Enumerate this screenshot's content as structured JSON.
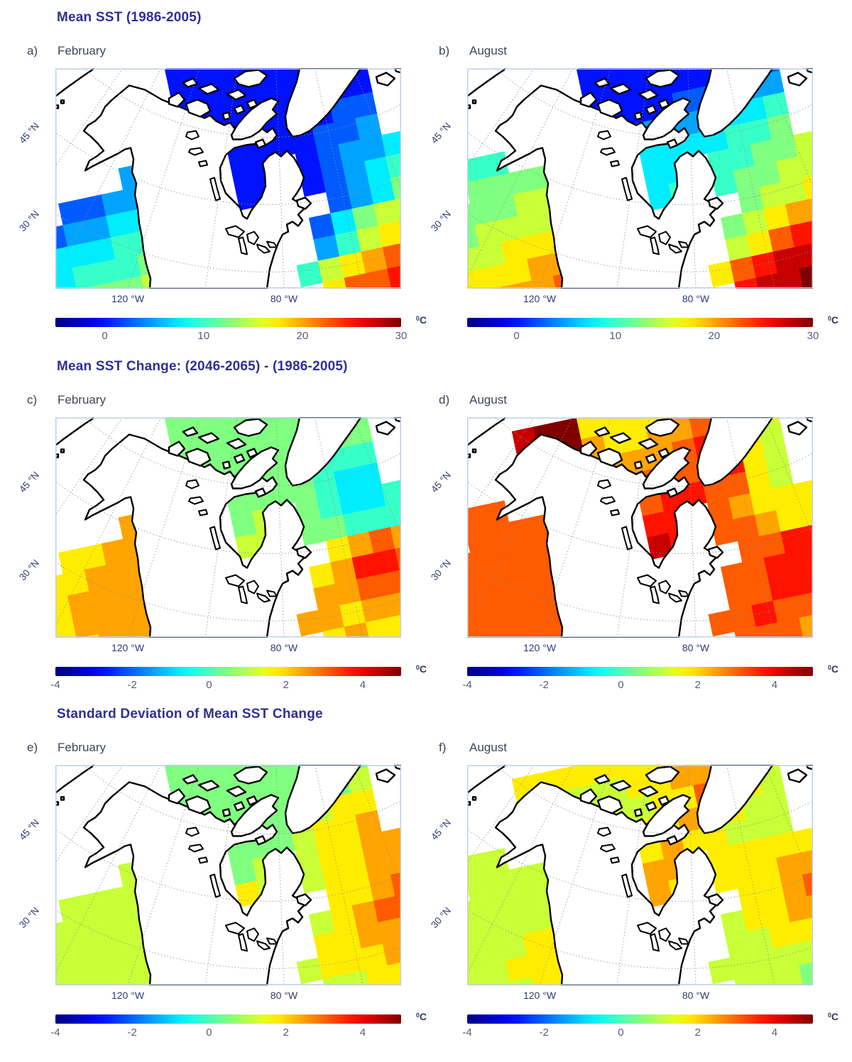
{
  "figure": {
    "axis_labels": {
      "lat": [
        "45 °N",
        "30 °N"
      ],
      "lon": [
        "120 °W",
        "80 °W"
      ]
    },
    "colors": {
      "title": "#2f2f96",
      "panel_label": "#3f4458",
      "axis_label": "#2e3a70",
      "tick_label": "#525d78",
      "unit_label": "#2c3a66",
      "map_frame": "#bdd0ea",
      "graticule": "#8f8f8f",
      "coastline": "#000000",
      "land": "#ffffff"
    },
    "rows": [
      {
        "title": "Mean SST (1986-2005)",
        "panels": [
          {
            "letter": "a)",
            "month": "February"
          },
          {
            "letter": "b)",
            "month": "August"
          }
        ],
        "colorbar": {
          "range_min": -5,
          "range_max": 30,
          "tick_values": [
            0,
            10,
            20,
            30
          ],
          "ticks": [
            "0",
            "10",
            "20",
            "30"
          ],
          "unit_sup": "0",
          "unit_base": "C"
        }
      },
      {
        "title": "Mean SST Change: (2046-2065) - (1986-2005)",
        "panels": [
          {
            "letter": "c)",
            "month": "February"
          },
          {
            "letter": "d)",
            "month": "August"
          }
        ],
        "colorbar": {
          "range_min": -4,
          "range_max": 5,
          "tick_values": [
            -4,
            -2,
            0,
            2,
            4
          ],
          "ticks": [
            "-4",
            "-2",
            "0",
            "2",
            "4"
          ],
          "unit_sup": "0",
          "unit_base": "C"
        }
      },
      {
        "title": "Standard Deviation of Mean SST Change",
        "panels": [
          {
            "letter": "e)",
            "month": "February"
          },
          {
            "letter": "f)",
            "month": "August"
          }
        ],
        "colorbar": {
          "range_min": -4,
          "range_max": 5,
          "tick_values": [
            -4,
            -2,
            0,
            2,
            4
          ],
          "ticks": [
            "-4",
            "-2",
            "0",
            "2",
            "4"
          ],
          "unit_sup": "0",
          "unit_base": "C"
        }
      }
    ]
  },
  "chart_data": [
    {
      "panel": "a",
      "row_title": "Mean SST (1986-2005)",
      "month": "February",
      "type": "heatmap",
      "units": "°C",
      "colormap": "jet",
      "value_range": [
        -5,
        30
      ],
      "legend_ticks": [
        0,
        10,
        20,
        30
      ],
      "levels": "chars 0-9,a-e map linearly from value_range[0] to value_range[1]; '.' = no data (ice/land/out of domain)",
      "pattern_notes": "Arctic, Hudson Bay and Labrador Sea near -2 to 1 C (blue); Pacific 5-20 C gradient; subtropical NW Atlantic 20-27 C",
      "grid": [
        "........222222222...",
        "........222222222...",
        "........222222222...",
        "..........2222233...",
        ".....444..2222334...",
        "..334445..22.2344555",
        "33445556..22.2345666",
        "455566666..2..345788",
        "556667777....357889a",
        "6677788888...4689abb",
        "7788899999..689abbcc",
        "889999aaaaa..9bbcccd",
        "999aaaabbbb..bcccddd",
        "aaabbbbbcccc.ccdddee"
      ]
    },
    {
      "panel": "b",
      "row_title": "Mean SST (1986-2005)",
      "month": "August",
      "type": "heatmap",
      "units": "°C",
      "colormap": "jet",
      "value_range": [
        -5,
        30
      ],
      "legend_ticks": [
        0,
        10,
        20,
        30
      ],
      "levels": "chars 0-9,a-e map linearly from value_range[0] to value_range[1]; '.' = no data",
      "pattern_notes": "Arctic 0-3 C; Hudson Bay ~8 C cyan; Pacific 12-24 C; subtropical NW Atlantic 26-29 C dark red",
      "grid": [
        "........222222223...",
        "........222222233...",
        "........222233444...",
        "..66......4444556...",
        "..77777...5555667...",
        "77778888..55.6677888",
        "77888888..56.6778899",
        "888999999..6..78899a",
        "8999aaaaa....789aabb",
        "99aaabbbbb...89bccdd",
        "aabbbbcccc..9bcdddee",
        "bbbcccccddd..cddeeee",
        "bbcccccddddd.ddeeeee",
        "cccccddddddd.deeeeee"
      ]
    },
    {
      "panel": "c",
      "row_title": "Mean SST Change: (2046-2065) - (1986-2005)",
      "month": "February",
      "type": "heatmap",
      "units": "°C",
      "colormap": "jet",
      "value_range": [
        -4,
        5
      ],
      "legend_ticks": [
        -4,
        -2,
        0,
        2,
        4
      ],
      "levels": "chars 0-9,a-e map linearly from value_range[0] to value_range[1]; '.' = no data",
      "pattern_notes": "Arctic/Hudson Bay ~+0.5 C teal; cyan ~0 C patch south of Greenland; Gulf Stream warming spot ~+3.5 C; elsewhere +1.5 to +2.5 C",
      "grid": [
        "........777777777...",
        "........777777777...",
        "........777777777...",
        "..........7777666...",
        ".....aa9..7777655...",
        "..99aaa9..78.7655666",
        "999aaaa9..88.7766677",
        "99aaaaa99..8..9aba88",
        "99aaaaaa9....9accb99",
        "999aaaaa99...aabba99",
        "9999aaaa99..aa9aa988",
        "99999aa9999..9a99888",
        "99999999999..9998888",
        "999aa9999999.9988888"
      ]
    },
    {
      "panel": "d",
      "row_title": "Mean SST Change: (2046-2065) - (1986-2005)",
      "month": "August",
      "type": "heatmap",
      "units": "°C",
      "colormap": "jet",
      "value_range": [
        -4,
        5
      ],
      "legend_ticks": [
        -4,
        -2,
        0,
        2,
        4
      ],
      "levels": "chars 0-9,a-e map linearly from value_range[0] to value_range[1]; '.' = no data",
      "pattern_notes": "Strong warming: Beaufort Sea ~+4.5 C dark red; Hudson Bay +3.5 to +4 C; Gulf Stream band ~+3.5 C; most ocean +2 to +3 C orange",
      "grid": [
        ".....dee9999aabcc...",
        ".....deea99aabcc9...",
        "......ddaaaabcc98...",
        "..bb......bbbbc98...",
        "..bbbbb...bccbb98...",
        "bbbbbbbb..cc.ba999aa",
        "bbbbbbbb..dc.bba99aa",
        "bbbbbbbbb..d..bbccaa",
        "bbbbbbbbb....bbcccba",
        "abbbbbbbbb...bbccbaa",
        "aabbbbbbbb..bbcbbaa9",
        "aabbbbbbbbb..bbbaa99",
        "aaabbbbbbbb..bbaa999",
        "aaaabbbbbbbb.baa9999"
      ]
    },
    {
      "panel": "e",
      "row_title": "Standard Deviation of Mean SST Change",
      "month": "February",
      "type": "heatmap",
      "units": "°C",
      "colormap": "jet",
      "value_range": [
        -4,
        5
      ],
      "legend_ticks": [
        -4,
        -2,
        0,
        2,
        4
      ],
      "levels": "chars 0-9,a-e map linearly from value_range[0] to value_range[1]; '.' = no data",
      "pattern_notes": "Mostly 0.5-1 C (teal/green); band of higher std dev 1.5-3 C (yellow/orange) in NW Atlantic and Davis Strait; small yellow spot in SE Hudson Bay",
      "grid": [
        "........777777777...",
        "........777777777...",
        "........777777778...",
        "..........7777899...",
        ".....888..777899a...",
        "..888888..78.899aa99",
        "88888888..98.899aa99",
        "888888888..9..99aba9",
        "888888888....89abba9",
        "8888888888...99aaba9",
        "8888888888..8999aa98",
        "88888888888..8899887",
        "78888888888..8887776",
        "778888888888.8777666"
      ]
    },
    {
      "panel": "f",
      "row_title": "Standard Deviation of Mean SST Change",
      "month": "August",
      "type": "heatmap",
      "units": "°C",
      "colormap": "jet",
      "value_range": [
        -4,
        5
      ],
      "legend_ticks": [
        -4,
        -2,
        0,
        2,
        4
      ],
      "levels": "chars 0-9,a-e map linearly from value_range[0] to value_range[1]; '.' = no data",
      "pattern_notes": "Mostly 1-1.5 C green/yellow-green; orange spots ~2.5 C near Lancaster Sound, east of Greenland and mid North Atlantic; teal ~0.7 C in subtropics",
      "grid": [
        ".....99999999abb9...",
        ".....9988899aab99...",
        "......9888899bb98...",
        "..88......99a9988...",
        "..88888...9a99888...",
        "88888888..aa.99999aa",
        "88888888..a9.999aaba",
        "888899888..a..99aba9",
        "888999988....899aa98",
        "8888998888...8899988",
        "8888888888..88888877",
        "78888888888..8887777",
        "77888888888..8777766",
        "777888888888.7776666"
      ]
    }
  ]
}
